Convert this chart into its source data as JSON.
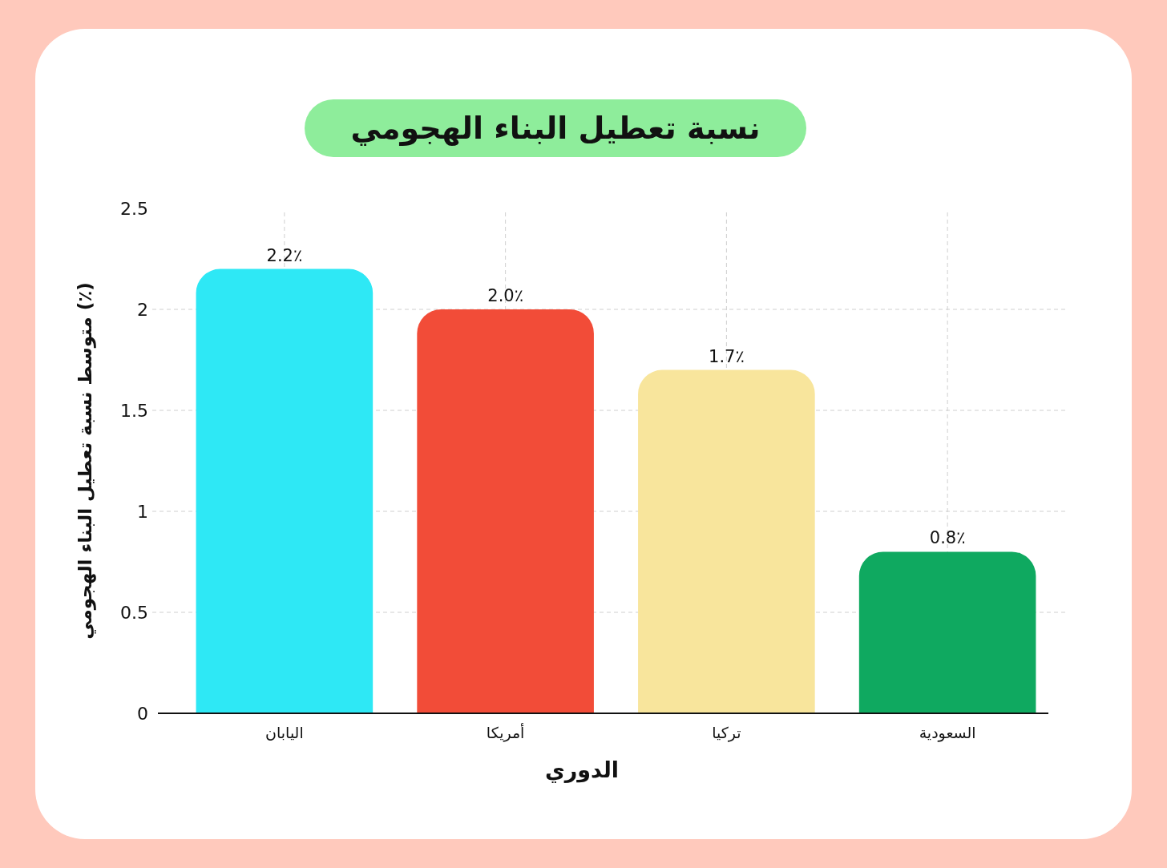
{
  "chart_data": {
    "type": "bar",
    "title": "نسبة تعطيل البناء الهجومي",
    "xlabel": "الدوري",
    "ylabel": "متوسط نسبة تعطيل البناء الهجومي (٪)",
    "categories": [
      "اليابان",
      "أمريكا",
      "تركيا",
      "السعودية"
    ],
    "values": [
      2.2,
      2.0,
      1.7,
      0.8
    ],
    "colors": [
      "#2ee8f5",
      "#f24c38",
      "#f8e59c",
      "#0fa960"
    ],
    "value_labels": [
      "2.2٪",
      "2.0٪",
      "1.7٪",
      "0.8٪"
    ],
    "ylim": [
      0,
      2.5
    ],
    "yticks": [
      0,
      0.5,
      1,
      1.5,
      2,
      2.5
    ],
    "grid": true
  }
}
